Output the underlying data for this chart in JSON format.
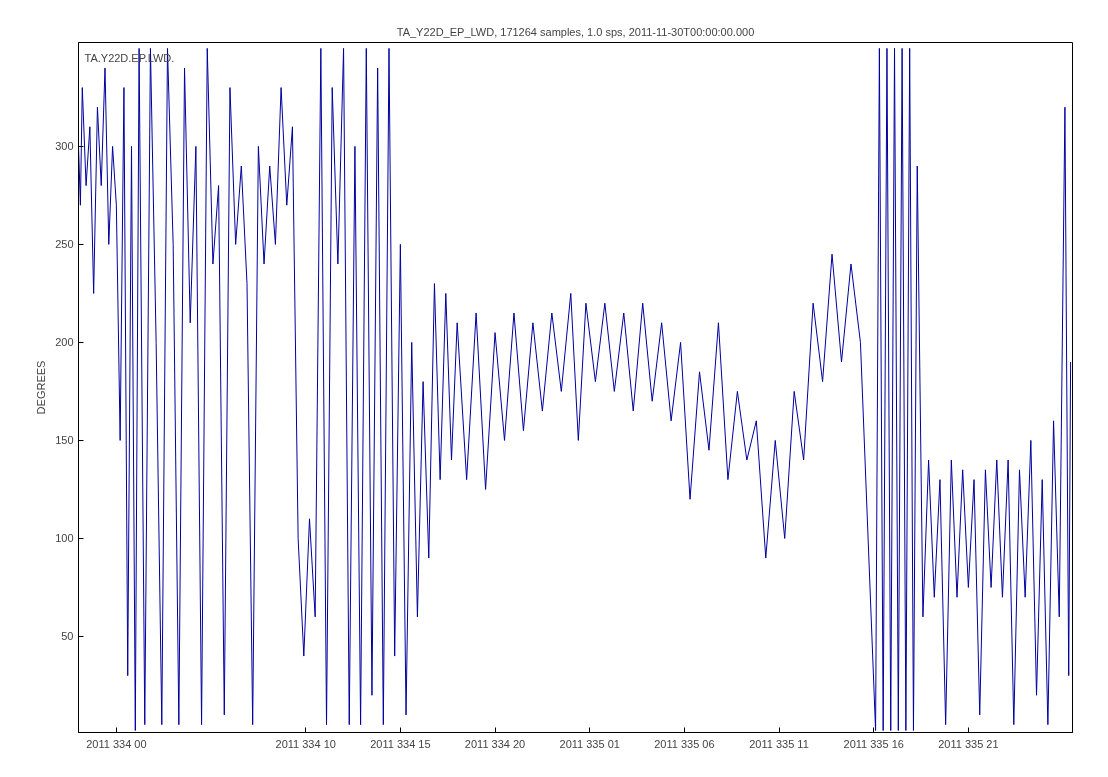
{
  "chart_data": {
    "type": "line",
    "title": "TA_Y22D_EP_LWD, 171264 samples, 1.0 sps, 2011-11-30T00:00:00.000",
    "ylabel": "DEGREES",
    "annotations": [
      "TA.Y22D.EP.LWD."
    ],
    "xlim": [
      "2011-11-29T22:00",
      "2011-12-02T02:30"
    ],
    "ylim": [
      1,
      353
    ],
    "xticks": [
      {
        "value": "2011-11-30T00:00",
        "label": "2011 334 00"
      },
      {
        "value": "2011-11-30T10:00",
        "label": "2011 334 10"
      },
      {
        "value": "2011-11-30T15:00",
        "label": "2011 334 15"
      },
      {
        "value": "2011-11-30T20:00",
        "label": "2011 334 20"
      },
      {
        "value": "2011-12-01T01:00",
        "label": "2011 335 01"
      },
      {
        "value": "2011-12-01T06:00",
        "label": "2011 335 06"
      },
      {
        "value": "2011-12-01T11:00",
        "label": "2011 335 11"
      },
      {
        "value": "2011-12-01T16:00",
        "label": "2011 335 16"
      },
      {
        "value": "2011-12-01T21:00",
        "label": "2011 335 21"
      }
    ],
    "yticks": [
      50,
      100,
      150,
      200,
      250,
      300
    ],
    "grid": false,
    "line_style": "solid",
    "marker": "none",
    "series": [
      {
        "color": "#00009e",
        "x": [
          "2011-11-29T22:00",
          "2011-11-29T22:06",
          "2011-11-29T22:12",
          "2011-11-29T22:24",
          "2011-11-29T22:36",
          "2011-11-29T22:48",
          "2011-11-29T23:00",
          "2011-11-29T23:12",
          "2011-11-29T23:24",
          "2011-11-29T23:36",
          "2011-11-29T23:48",
          "2011-11-30T00:00",
          "2011-11-30T00:12",
          "2011-11-30T00:24",
          "2011-11-30T00:36",
          "2011-11-30T00:48",
          "2011-11-30T01:00",
          "2011-11-30T01:12",
          "2011-11-30T01:30",
          "2011-11-30T01:48",
          "2011-11-30T02:06",
          "2011-11-30T02:24",
          "2011-11-30T02:42",
          "2011-11-30T03:00",
          "2011-11-30T03:18",
          "2011-11-30T03:36",
          "2011-11-30T03:54",
          "2011-11-30T04:12",
          "2011-11-30T04:30",
          "2011-11-30T04:48",
          "2011-11-30T05:06",
          "2011-11-30T05:24",
          "2011-11-30T05:42",
          "2011-11-30T06:00",
          "2011-11-30T06:18",
          "2011-11-30T06:36",
          "2011-11-30T06:54",
          "2011-11-30T07:12",
          "2011-11-30T07:30",
          "2011-11-30T07:48",
          "2011-11-30T08:06",
          "2011-11-30T08:24",
          "2011-11-30T08:42",
          "2011-11-30T09:00",
          "2011-11-30T09:18",
          "2011-11-30T09:36",
          "2011-11-30T09:54",
          "2011-11-30T10:12",
          "2011-11-30T10:30",
          "2011-11-30T10:48",
          "2011-11-30T11:06",
          "2011-11-30T11:24",
          "2011-11-30T11:42",
          "2011-11-30T12:00",
          "2011-11-30T12:18",
          "2011-11-30T12:36",
          "2011-11-30T12:54",
          "2011-11-30T13:12",
          "2011-11-30T13:30",
          "2011-11-30T13:48",
          "2011-11-30T14:06",
          "2011-11-30T14:24",
          "2011-11-30T14:42",
          "2011-11-30T15:00",
          "2011-11-30T15:18",
          "2011-11-30T15:36",
          "2011-11-30T15:54",
          "2011-11-30T16:12",
          "2011-11-30T16:30",
          "2011-11-30T16:48",
          "2011-11-30T17:06",
          "2011-11-30T17:24",
          "2011-11-30T17:42",
          "2011-11-30T18:00",
          "2011-11-30T18:30",
          "2011-11-30T19:00",
          "2011-11-30T19:30",
          "2011-11-30T20:00",
          "2011-11-30T20:30",
          "2011-11-30T21:00",
          "2011-11-30T21:30",
          "2011-11-30T22:00",
          "2011-11-30T22:30",
          "2011-11-30T23:00",
          "2011-11-30T23:30",
          "2011-12-01T00:00",
          "2011-12-01T00:24",
          "2011-12-01T00:48",
          "2011-12-01T01:18",
          "2011-12-01T01:48",
          "2011-12-01T02:18",
          "2011-12-01T02:48",
          "2011-12-01T03:18",
          "2011-12-01T03:48",
          "2011-12-01T04:18",
          "2011-12-01T04:48",
          "2011-12-01T05:18",
          "2011-12-01T05:48",
          "2011-12-01T06:18",
          "2011-12-01T06:48",
          "2011-12-01T07:18",
          "2011-12-01T07:48",
          "2011-12-01T08:18",
          "2011-12-01T08:48",
          "2011-12-01T09:18",
          "2011-12-01T09:48",
          "2011-12-01T10:18",
          "2011-12-01T10:48",
          "2011-12-01T11:18",
          "2011-12-01T11:48",
          "2011-12-01T12:18",
          "2011-12-01T12:48",
          "2011-12-01T13:18",
          "2011-12-01T13:48",
          "2011-12-01T14:18",
          "2011-12-01T14:48",
          "2011-12-01T15:18",
          "2011-12-01T16:06",
          "2011-12-01T16:18",
          "2011-12-01T16:30",
          "2011-12-01T16:42",
          "2011-12-01T16:54",
          "2011-12-01T17:06",
          "2011-12-01T17:18",
          "2011-12-01T17:30",
          "2011-12-01T17:42",
          "2011-12-01T17:54",
          "2011-12-01T18:06",
          "2011-12-01T18:18",
          "2011-12-01T18:36",
          "2011-12-01T18:54",
          "2011-12-01T19:12",
          "2011-12-01T19:30",
          "2011-12-01T19:48",
          "2011-12-01T20:06",
          "2011-12-01T20:24",
          "2011-12-01T20:42",
          "2011-12-01T21:00",
          "2011-12-01T21:18",
          "2011-12-01T21:36",
          "2011-12-01T21:54",
          "2011-12-01T22:12",
          "2011-12-01T22:30",
          "2011-12-01T22:48",
          "2011-12-01T23:06",
          "2011-12-01T23:24",
          "2011-12-01T23:42",
          "2011-12-02T00:00",
          "2011-12-02T00:18",
          "2011-12-02T00:36",
          "2011-12-02T00:54",
          "2011-12-02T01:12",
          "2011-12-02T01:30",
          "2011-12-02T01:48",
          "2011-12-02T02:06",
          "2011-12-02T02:18",
          "2011-12-02T02:24"
        ],
        "values": [
          300,
          270,
          330,
          280,
          310,
          225,
          320,
          280,
          340,
          250,
          300,
          270,
          150,
          330,
          30,
          300,
          2,
          350,
          5,
          350,
          200,
          5,
          350,
          250,
          5,
          340,
          210,
          300,
          5,
          350,
          240,
          280,
          10,
          330,
          250,
          290,
          230,
          5,
          300,
          240,
          290,
          250,
          330,
          270,
          310,
          100,
          40,
          110,
          60,
          350,
          5,
          330,
          240,
          350,
          5,
          300,
          5,
          350,
          20,
          340,
          5,
          350,
          40,
          250,
          10,
          200,
          60,
          180,
          90,
          230,
          130,
          225,
          140,
          210,
          130,
          215,
          125,
          205,
          150,
          215,
          155,
          210,
          165,
          215,
          175,
          225,
          150,
          220,
          180,
          220,
          175,
          215,
          165,
          220,
          170,
          210,
          160,
          200,
          120,
          185,
          145,
          210,
          130,
          175,
          140,
          160,
          90,
          150,
          100,
          175,
          140,
          220,
          180,
          245,
          190,
          240,
          200,
          2,
          350,
          2,
          350,
          2,
          350,
          2,
          350,
          2,
          350,
          2,
          290,
          60,
          140,
          70,
          130,
          5,
          140,
          70,
          135,
          75,
          130,
          10,
          135,
          75,
          140,
          70,
          140,
          5,
          135,
          70,
          150,
          20,
          130,
          5,
          160,
          60,
          320,
          30,
          190
        ]
      }
    ]
  }
}
